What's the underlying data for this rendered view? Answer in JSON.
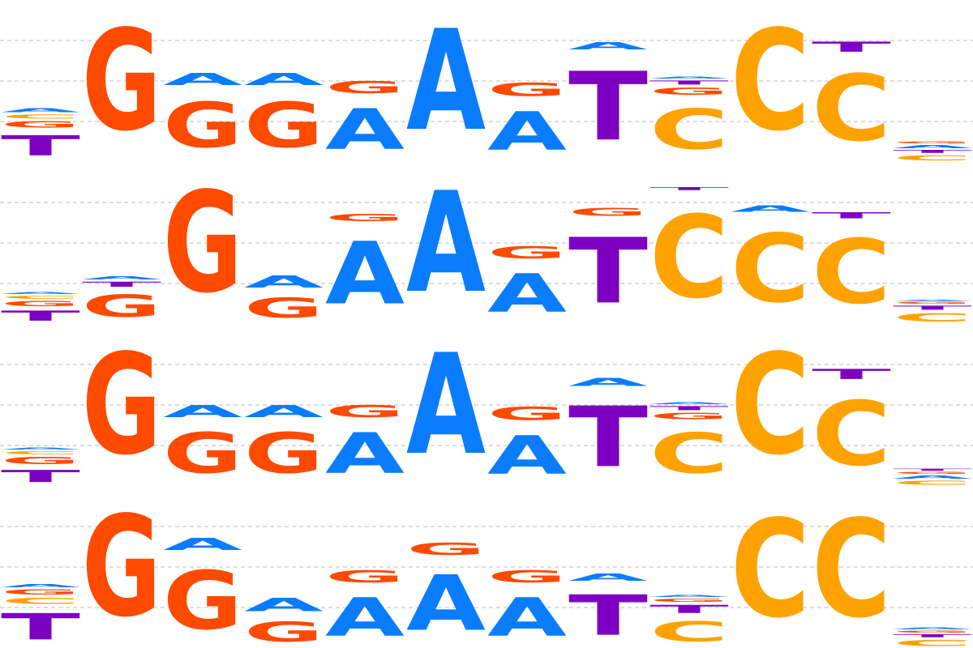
{
  "colors": {
    "A": "#0a7cff",
    "C": "#ffa200",
    "G": "#ff4a00",
    "T": "#7d00c2",
    "grid": "#bdbdbd"
  },
  "logos": [
    {
      "columns": [
        [
          [
            "T",
            0.2
          ],
          [
            "G",
            0.06
          ],
          [
            "A",
            0.04
          ],
          [
            "C",
            0.04
          ]
        ],
        [
          [
            "G",
            1.0
          ]
        ],
        [
          [
            "G",
            0.45
          ],
          [
            "A",
            0.12
          ]
        ],
        [
          [
            "G",
            0.45
          ],
          [
            "A",
            0.12
          ]
        ],
        [
          [
            "A",
            0.4
          ],
          [
            "G",
            0.12
          ]
        ],
        [
          [
            "A",
            1.0
          ]
        ],
        [
          [
            "A",
            0.38
          ],
          [
            "G",
            0.13
          ]
        ],
        [
          [
            "T",
            0.68
          ],
          [
            "A",
            0.07
          ]
        ],
        [
          [
            "C",
            0.4
          ],
          [
            "G",
            0.07
          ],
          [
            "T",
            0.04
          ],
          [
            "A",
            0.02
          ]
        ],
        [
          [
            "C",
            1.0
          ]
        ],
        [
          [
            "C",
            0.66
          ],
          [
            "T",
            0.1
          ]
        ],
        [
          [
            "C",
            0.05
          ],
          [
            "A",
            0.03
          ],
          [
            "T",
            0.03
          ],
          [
            "G",
            0.02
          ]
        ]
      ]
    },
    {
      "columns": [
        [
          [
            "T",
            0.1
          ],
          [
            "G",
            0.05
          ],
          [
            "C",
            0.03
          ],
          [
            "A",
            0.02
          ]
        ],
        [
          [
            "G",
            0.22
          ],
          [
            "T",
            0.05
          ],
          [
            "A",
            0.03
          ]
        ],
        [
          [
            "G",
            1.0
          ]
        ],
        [
          [
            "G",
            0.2
          ],
          [
            "A",
            0.12
          ]
        ],
        [
          [
            "A",
            0.62
          ],
          [
            "G",
            0.07
          ]
        ],
        [
          [
            "A",
            1.0
          ]
        ],
        [
          [
            "A",
            0.38
          ],
          [
            "G",
            0.12
          ]
        ],
        [
          [
            "T",
            0.65
          ],
          [
            "G",
            0.08
          ]
        ],
        [
          [
            "C",
            0.82
          ],
          [
            "T",
            0.03
          ]
        ],
        [
          [
            "C",
            0.68
          ],
          [
            "A",
            0.06
          ]
        ],
        [
          [
            "C",
            0.64
          ],
          [
            "T",
            0.06
          ]
        ],
        [
          [
            "C",
            0.08
          ],
          [
            "T",
            0.04
          ],
          [
            "G",
            0.02
          ],
          [
            "A",
            0.01
          ]
        ]
      ]
    },
    {
      "columns": [
        [
          [
            "T",
            0.12
          ],
          [
            "G",
            0.07
          ],
          [
            "C",
            0.03
          ],
          [
            "A",
            0.02
          ]
        ],
        [
          [
            "G",
            1.0
          ]
        ],
        [
          [
            "G",
            0.4
          ],
          [
            "A",
            0.12
          ]
        ],
        [
          [
            "G",
            0.4
          ],
          [
            "A",
            0.12
          ]
        ],
        [
          [
            "A",
            0.4
          ],
          [
            "G",
            0.12
          ]
        ],
        [
          [
            "A",
            1.0
          ]
        ],
        [
          [
            "A",
            0.38
          ],
          [
            "G",
            0.13
          ]
        ],
        [
          [
            "T",
            0.6
          ],
          [
            "A",
            0.08
          ]
        ],
        [
          [
            "C",
            0.4
          ],
          [
            "G",
            0.06
          ],
          [
            "T",
            0.04
          ],
          [
            "A",
            0.02
          ]
        ],
        [
          [
            "C",
            1.0
          ]
        ],
        [
          [
            "C",
            0.64
          ],
          [
            "T",
            0.1
          ]
        ],
        [
          [
            "C",
            0.04
          ],
          [
            "A",
            0.03
          ],
          [
            "T",
            0.02
          ],
          [
            "G",
            0.02
          ]
        ]
      ]
    },
    {
      "columns": [
        [
          [
            "T",
            0.26
          ],
          [
            "C",
            0.06
          ],
          [
            "G",
            0.05
          ],
          [
            "A",
            0.03
          ]
        ],
        [
          [
            "G",
            1.0
          ]
        ],
        [
          [
            "G",
            0.58
          ],
          [
            "A",
            0.12
          ]
        ],
        [
          [
            "G",
            0.2
          ],
          [
            "A",
            0.13
          ]
        ],
        [
          [
            "A",
            0.38
          ],
          [
            "G",
            0.12
          ]
        ],
        [
          [
            "A",
            0.55
          ],
          [
            "G",
            0.12
          ]
        ],
        [
          [
            "A",
            0.38
          ],
          [
            "G",
            0.12
          ]
        ],
        [
          [
            "T",
            0.4
          ],
          [
            "A",
            0.07
          ]
        ],
        [
          [
            "C",
            0.2
          ],
          [
            "T",
            0.08
          ],
          [
            "G",
            0.03
          ],
          [
            "A",
            0.02
          ]
        ],
        [
          [
            "C",
            0.97
          ]
        ],
        [
          [
            "C",
            0.97
          ]
        ],
        [
          [
            "C",
            0.06
          ],
          [
            "T",
            0.03
          ],
          [
            "A",
            0.02
          ],
          [
            "G",
            0.02
          ]
        ]
      ]
    }
  ]
}
